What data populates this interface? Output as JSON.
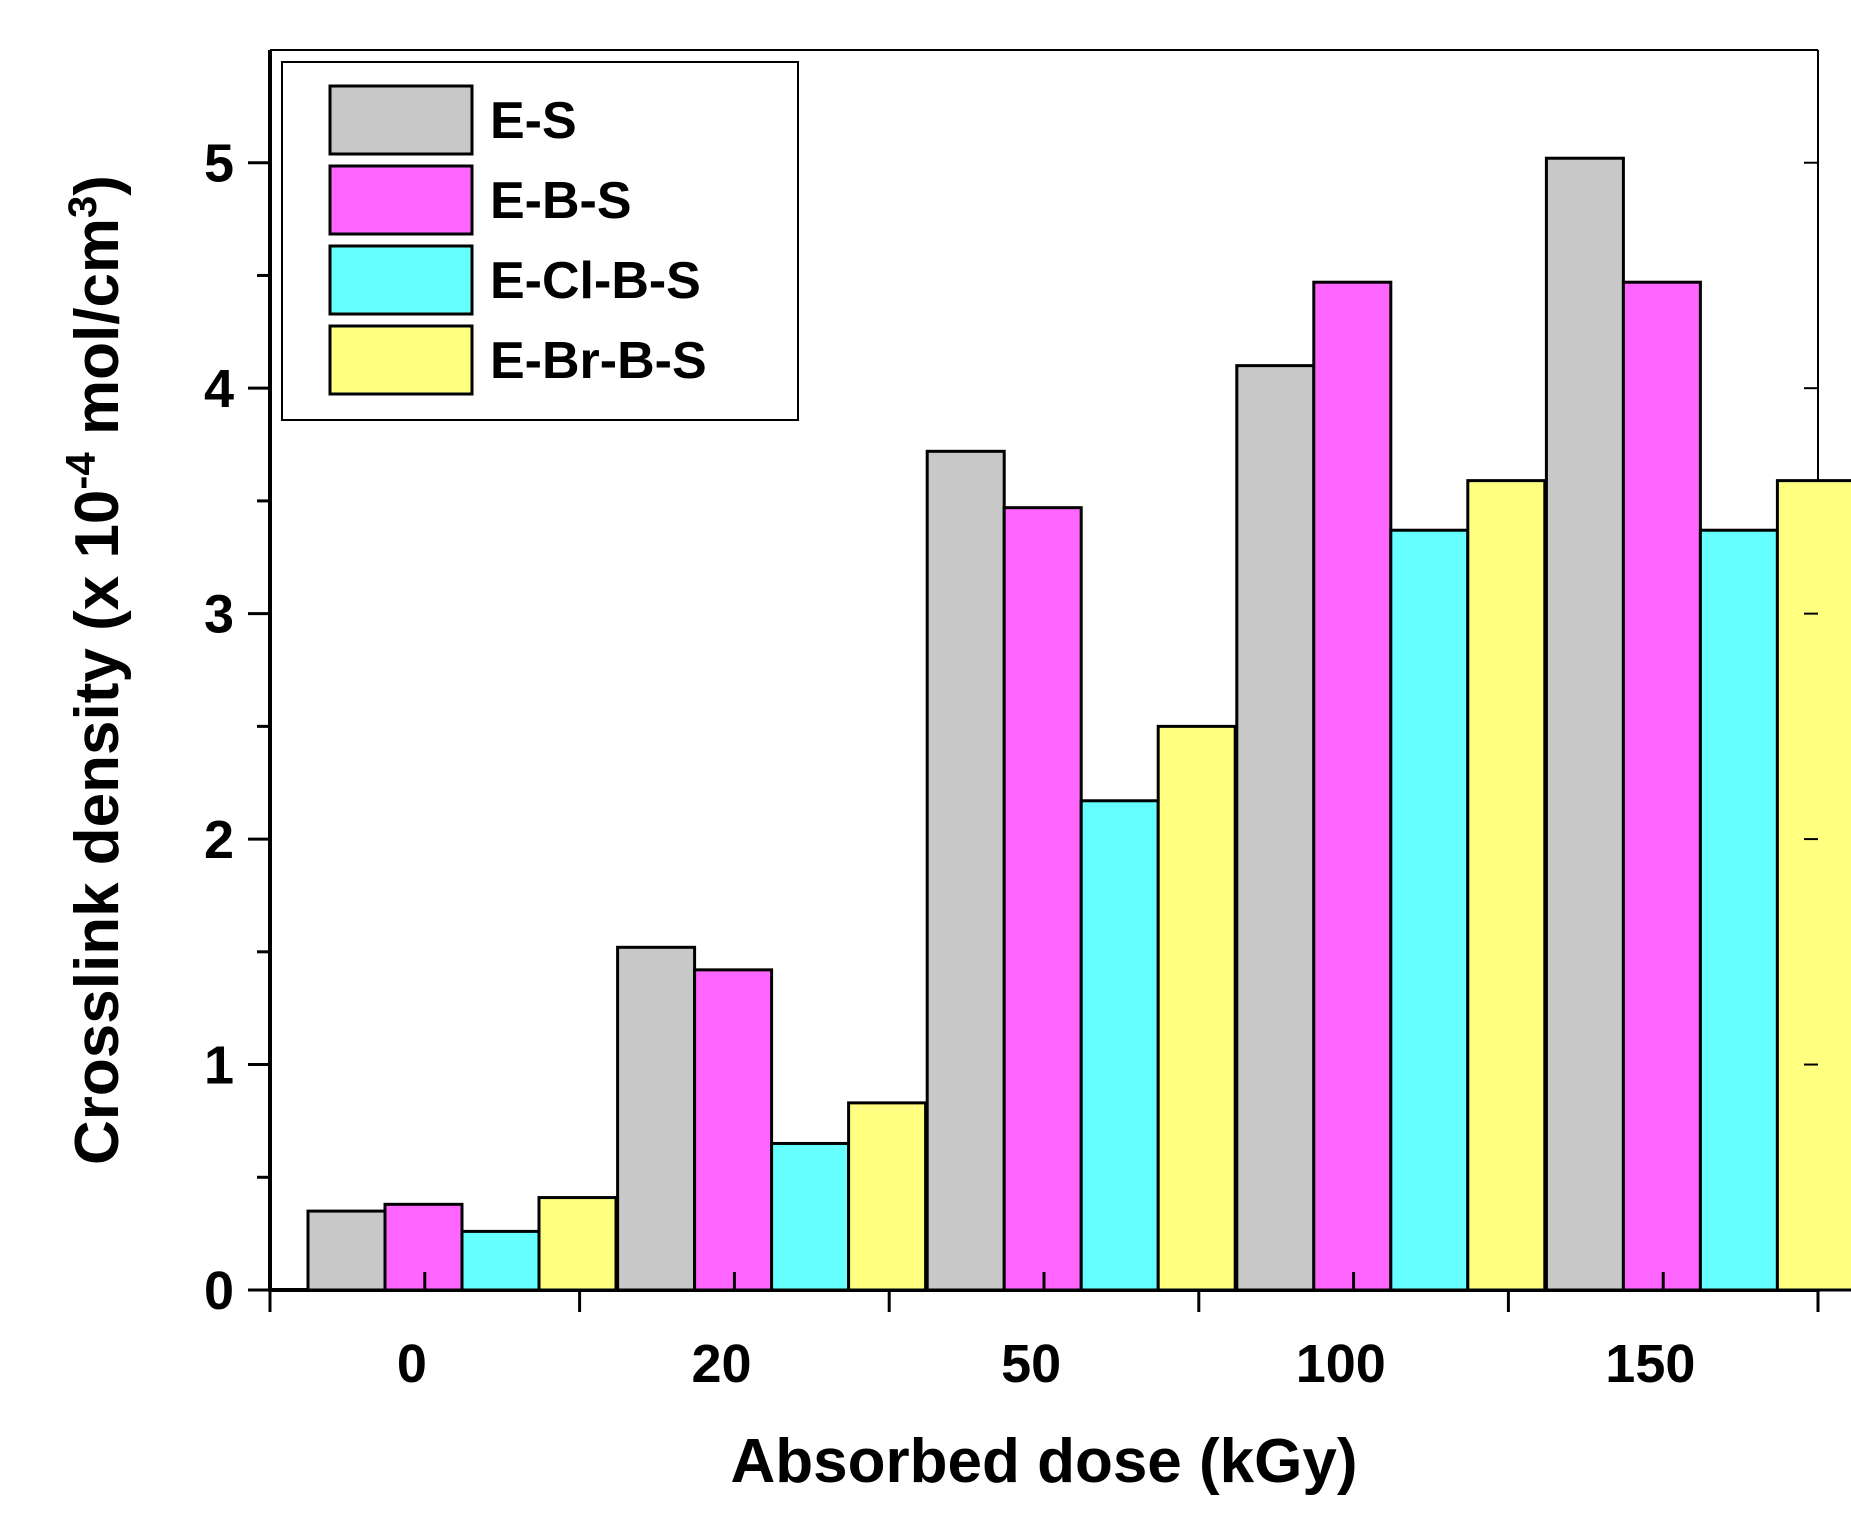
{
  "chart_data": {
    "type": "bar",
    "title": "",
    "xlabel": "Absorbed dose (kGy)",
    "ylabel": {
      "main": "Crosslink density (x 10",
      "exp": "-4",
      "unit": " mol/cm",
      "unit_exp": "3",
      "close": ")"
    },
    "categories": [
      "0",
      "20",
      "50",
      "100",
      "150"
    ],
    "ylim": [
      0,
      5.5
    ],
    "yticks": [
      "0",
      "1",
      "2",
      "3",
      "4",
      "5"
    ],
    "grid": false,
    "legend_position": "top-left",
    "series": [
      {
        "name": "E-S",
        "color": "#c8c8c8",
        "values": [
          0.35,
          1.52,
          3.72,
          4.1,
          5.02
        ]
      },
      {
        "name": "E-B-S",
        "color": "#ff66ff",
        "values": [
          0.38,
          1.42,
          3.47,
          4.47,
          4.47
        ]
      },
      {
        "name": "E-Cl-B-S",
        "color": "#66ffff",
        "values": [
          0.26,
          0.65,
          2.17,
          3.37,
          3.37
        ]
      },
      {
        "name": "E-Br-B-S",
        "color": "#ffff80",
        "values": [
          0.41,
          0.83,
          2.5,
          3.59,
          3.59
        ]
      }
    ]
  }
}
